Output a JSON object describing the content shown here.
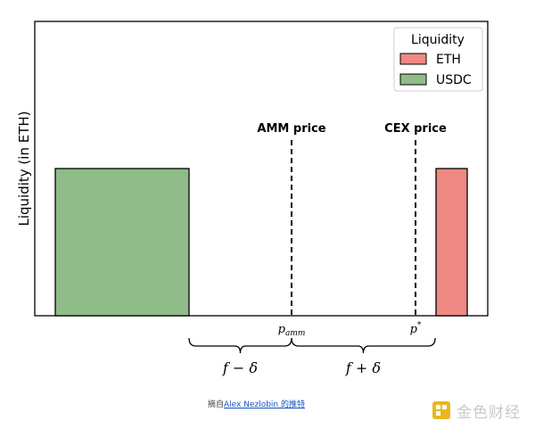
{
  "chart_data": {
    "type": "bar",
    "title": "",
    "ylabel": "Liquidity (in ETH)",
    "xlabel": "",
    "ylim": [
      0,
      2
    ],
    "bars": [
      {
        "series": "USDC",
        "value": 1,
        "color": "#8fbc88"
      },
      {
        "series": "ETH",
        "value": 1,
        "color": "#ee8984"
      }
    ],
    "vlines": [
      {
        "label": "AMM price",
        "tick": "p_amm"
      },
      {
        "label": "CEX price",
        "tick": "p*"
      }
    ],
    "braces": [
      {
        "label": "f − δ"
      },
      {
        "label": "f + δ"
      }
    ],
    "legend": {
      "title": "Liquidity",
      "position": "top-right",
      "items": [
        {
          "label": "ETH",
          "color": "#ee8984"
        },
        {
          "label": "USDC",
          "color": "#8fbc88"
        }
      ]
    },
    "grid": false
  },
  "caption": {
    "prefix": "摘自",
    "link": "Alex Nezlobin 的推特"
  },
  "watermark": {
    "text": "金色财经"
  }
}
